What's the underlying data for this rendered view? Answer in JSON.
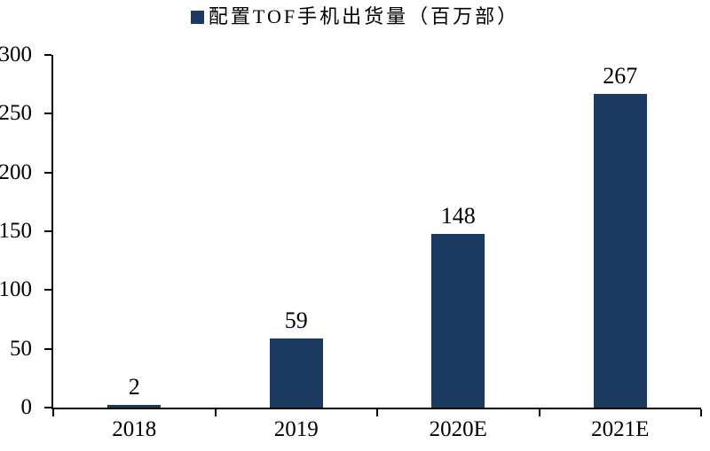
{
  "chart_data": {
    "type": "bar",
    "title": "配置TOF手机出货量（百万部）",
    "categories": [
      "2018",
      "2019",
      "2020E",
      "2021E"
    ],
    "values": [
      2,
      59,
      148,
      267
    ],
    "data_labels": [
      "2",
      "59",
      "148",
      "267"
    ],
    "xlabel": "",
    "ylabel": "",
    "ylim": [
      0,
      300
    ],
    "yticks": [
      0,
      50,
      100,
      150,
      200,
      250,
      300
    ],
    "grid": false,
    "legend_position": "top-center",
    "bar_color": "#1B3A5F",
    "axis_color": "#000000",
    "text_color": "#000000",
    "background_color": "#FFFFFF"
  }
}
